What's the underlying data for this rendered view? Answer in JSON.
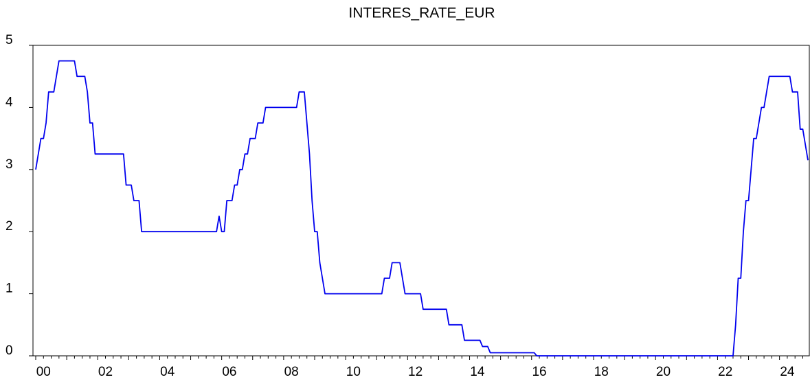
{
  "chart_data": {
    "type": "line",
    "title": "INTERES_RATE_EUR",
    "categories": [
      null,
      null,
      null,
      "00",
      null,
      null,
      null,
      null,
      null,
      null,
      null,
      null,
      null,
      null,
      null,
      null,
      null,
      null,
      null,
      null,
      null,
      null,
      null,
      null,
      null,
      null,
      null,
      "02",
      null,
      null,
      null,
      null,
      null,
      null,
      null,
      null,
      null,
      null,
      null,
      null,
      null,
      null,
      null,
      null,
      null,
      null,
      null,
      null,
      null,
      null,
      null,
      "04",
      null,
      null,
      null,
      null,
      null,
      null,
      null,
      null,
      null,
      null,
      null,
      null,
      null,
      null,
      null,
      null,
      null,
      null,
      null,
      null,
      null,
      null,
      null,
      "06",
      null,
      null,
      null,
      null,
      null,
      null,
      null,
      null,
      null,
      null,
      null,
      null,
      null,
      null,
      null,
      null,
      null,
      null,
      null,
      null,
      null,
      null,
      null,
      "08",
      null,
      null,
      null,
      null,
      null,
      null,
      null,
      null,
      null,
      null,
      null,
      null,
      null,
      null,
      null,
      null,
      null,
      null,
      null,
      null,
      null,
      null,
      null,
      "10",
      null,
      null,
      null,
      null,
      null,
      null,
      null,
      null,
      null,
      null,
      null,
      null,
      null,
      null,
      null,
      null,
      null,
      null,
      null,
      null,
      null,
      null,
      null,
      "12",
      null,
      null,
      null,
      null,
      null,
      null,
      null,
      null,
      null,
      null,
      null,
      null,
      null,
      null,
      null,
      null,
      null,
      null,
      null,
      null,
      null,
      null,
      null,
      "14",
      null,
      null,
      null,
      null,
      null,
      null,
      null,
      null,
      null,
      null,
      null,
      null,
      null,
      null,
      null,
      null,
      null,
      null,
      null,
      null,
      null,
      null,
      null,
      "16",
      null,
      null,
      null,
      null,
      null,
      null,
      null,
      null,
      null,
      null,
      null,
      null,
      null,
      null,
      null,
      null,
      null,
      null,
      null,
      null,
      null,
      null,
      null,
      "18",
      null,
      null,
      null,
      null,
      null,
      null,
      null,
      null,
      null,
      null,
      null,
      null,
      null,
      null,
      null,
      null,
      null,
      null,
      null,
      null,
      null,
      null,
      null,
      "20",
      null,
      null,
      null,
      null,
      null,
      null,
      null,
      null,
      null,
      null,
      null,
      null,
      null,
      null,
      null,
      null,
      null,
      null,
      null,
      null,
      null,
      null,
      null,
      "22",
      null,
      null,
      null,
      null,
      null,
      null,
      null,
      null,
      null,
      null,
      null,
      null,
      null,
      null,
      null,
      null,
      null,
      null,
      null,
      null,
      null,
      null,
      null,
      "24",
      null,
      null,
      null,
      null,
      null,
      null,
      null,
      null
    ],
    "series": [
      {
        "color": "#0000ee",
        "values": [
          3.0,
          3.25,
          3.5,
          3.5,
          3.75,
          4.25,
          4.25,
          4.25,
          4.5,
          4.75,
          4.75,
          4.75,
          4.75,
          4.75,
          4.75,
          4.75,
          4.5,
          4.5,
          4.5,
          4.5,
          4.25,
          3.75,
          3.75,
          3.25,
          3.25,
          3.25,
          3.25,
          3.25,
          3.25,
          3.25,
          3.25,
          3.25,
          3.25,
          3.25,
          3.25,
          2.75,
          2.75,
          2.75,
          2.5,
          2.5,
          2.5,
          2.0,
          2.0,
          2.0,
          2.0,
          2.0,
          2.0,
          2.0,
          2.0,
          2.0,
          2.0,
          2.0,
          2.0,
          2.0,
          2.0,
          2.0,
          2.0,
          2.0,
          2.0,
          2.0,
          2.0,
          2.0,
          2.0,
          2.0,
          2.0,
          2.0,
          2.0,
          2.0,
          2.0,
          2.0,
          2.0,
          2.25,
          2.0,
          2.0,
          2.5,
          2.5,
          2.5,
          2.75,
          2.75,
          3.0,
          3.0,
          3.25,
          3.25,
          3.5,
          3.5,
          3.5,
          3.75,
          3.75,
          3.75,
          4.0,
          4.0,
          4.0,
          4.0,
          4.0,
          4.0,
          4.0,
          4.0,
          4.0,
          4.0,
          4.0,
          4.0,
          4.0,
          4.25,
          4.25,
          4.25,
          3.75,
          3.25,
          2.5,
          2.0,
          2.0,
          1.5,
          1.25,
          1.0,
          1.0,
          1.0,
          1.0,
          1.0,
          1.0,
          1.0,
          1.0,
          1.0,
          1.0,
          1.0,
          1.0,
          1.0,
          1.0,
          1.0,
          1.0,
          1.0,
          1.0,
          1.0,
          1.0,
          1.0,
          1.0,
          1.0,
          1.25,
          1.25,
          1.25,
          1.5,
          1.5,
          1.5,
          1.5,
          1.25,
          1.0,
          1.0,
          1.0,
          1.0,
          1.0,
          1.0,
          1.0,
          0.75,
          0.75,
          0.75,
          0.75,
          0.75,
          0.75,
          0.75,
          0.75,
          0.75,
          0.75,
          0.5,
          0.5,
          0.5,
          0.5,
          0.5,
          0.5,
          0.25,
          0.25,
          0.25,
          0.25,
          0.25,
          0.25,
          0.25,
          0.15,
          0.15,
          0.15,
          0.05,
          0.05,
          0.05,
          0.05,
          0.05,
          0.05,
          0.05,
          0.05,
          0.05,
          0.05,
          0.05,
          0.05,
          0.05,
          0.05,
          0.05,
          0.05,
          0.05,
          0.05,
          0.0,
          0.0,
          0.0,
          0.0,
          0.0,
          0.0,
          0.0,
          0.0,
          0.0,
          0.0,
          0.0,
          0.0,
          0.0,
          0.0,
          0.0,
          0.0,
          0.0,
          0.0,
          0.0,
          0.0,
          0.0,
          0.0,
          0.0,
          0.0,
          0.0,
          0.0,
          0.0,
          0.0,
          0.0,
          0.0,
          0.0,
          0.0,
          0.0,
          0.0,
          0.0,
          0.0,
          0.0,
          0.0,
          0.0,
          0.0,
          0.0,
          0.0,
          0.0,
          0.0,
          0.0,
          0.0,
          0.0,
          0.0,
          0.0,
          0.0,
          0.0,
          0.0,
          0.0,
          0.0,
          0.0,
          0.0,
          0.0,
          0.0,
          0.0,
          0.0,
          0.0,
          0.0,
          0.0,
          0.0,
          0.0,
          0.0,
          0.0,
          0.0,
          0.0,
          0.0,
          0.0,
          0.0,
          0.0,
          0.0,
          0.0,
          0.0,
          0.0,
          0.5,
          1.25,
          1.25,
          2.0,
          2.5,
          2.5,
          3.0,
          3.5,
          3.5,
          3.75,
          4.0,
          4.0,
          4.25,
          4.5,
          4.5,
          4.5,
          4.5,
          4.5,
          4.5,
          4.5,
          4.5,
          4.5,
          4.25,
          4.25,
          4.25,
          3.65,
          3.65,
          3.4,
          3.15
        ]
      }
    ],
    "ylim": [
      0,
      5
    ],
    "yticks": [
      0,
      1,
      2,
      3,
      4,
      5
    ]
  }
}
